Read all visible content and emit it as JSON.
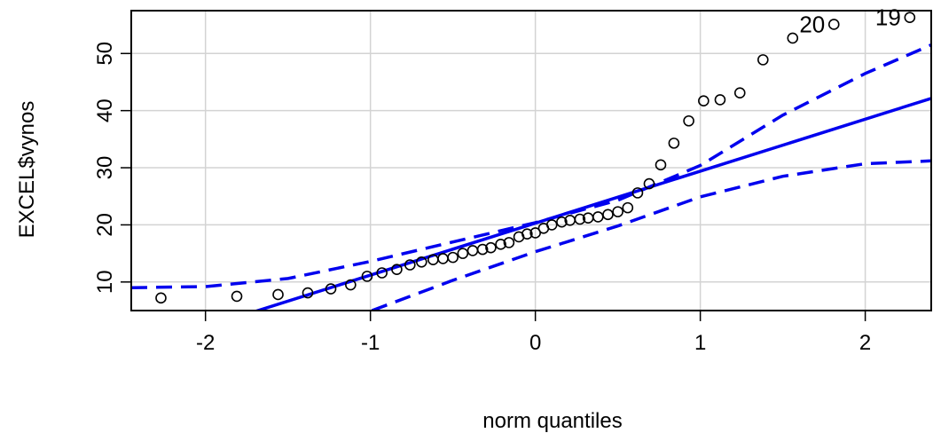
{
  "chart_data": {
    "type": "scatter",
    "title": "",
    "xlabel": "norm quantiles",
    "ylabel": "EXCEL$vynos",
    "xlim": [
      -2.45,
      2.4
    ],
    "ylim": [
      5,
      57.5
    ],
    "x_ticks": [
      -2,
      -1,
      0,
      1,
      2
    ],
    "y_ticks": [
      10,
      20,
      30,
      40,
      50
    ],
    "x_tick_labels": [
      "-2",
      "-1",
      "0",
      "1",
      "2"
    ],
    "y_tick_labels": [
      "10",
      "20",
      "30",
      "40",
      "50"
    ],
    "grid": true,
    "colors": {
      "line": "#0000ee",
      "points": "#000000",
      "grid": "#d3d3d3"
    },
    "points": [
      {
        "x": -2.27,
        "y": 7.2
      },
      {
        "x": -1.81,
        "y": 7.5
      },
      {
        "x": -1.56,
        "y": 7.8
      },
      {
        "x": -1.38,
        "y": 8.1
      },
      {
        "x": -1.24,
        "y": 8.8
      },
      {
        "x": -1.12,
        "y": 9.5
      },
      {
        "x": -1.02,
        "y": 11.0
      },
      {
        "x": -0.93,
        "y": 11.6
      },
      {
        "x": -0.84,
        "y": 12.2
      },
      {
        "x": -0.76,
        "y": 13.0
      },
      {
        "x": -0.69,
        "y": 13.5
      },
      {
        "x": -0.62,
        "y": 13.9
      },
      {
        "x": -0.56,
        "y": 14.1
      },
      {
        "x": -0.5,
        "y": 14.3
      },
      {
        "x": -0.44,
        "y": 15.0
      },
      {
        "x": -0.38,
        "y": 15.5
      },
      {
        "x": -0.32,
        "y": 15.7
      },
      {
        "x": -0.27,
        "y": 16.0
      },
      {
        "x": -0.21,
        "y": 16.6
      },
      {
        "x": -0.16,
        "y": 16.9
      },
      {
        "x": -0.1,
        "y": 17.9
      },
      {
        "x": -0.05,
        "y": 18.4
      },
      {
        "x": 0.0,
        "y": 18.6
      },
      {
        "x": 0.05,
        "y": 19.4
      },
      {
        "x": 0.1,
        "y": 20.0
      },
      {
        "x": 0.16,
        "y": 20.5
      },
      {
        "x": 0.21,
        "y": 20.8
      },
      {
        "x": 0.27,
        "y": 21.0
      },
      {
        "x": 0.32,
        "y": 21.2
      },
      {
        "x": 0.38,
        "y": 21.4
      },
      {
        "x": 0.44,
        "y": 21.8
      },
      {
        "x": 0.5,
        "y": 22.3
      },
      {
        "x": 0.56,
        "y": 23.0
      },
      {
        "x": 0.62,
        "y": 25.6
      },
      {
        "x": 0.69,
        "y": 27.2
      },
      {
        "x": 0.76,
        "y": 30.5
      },
      {
        "x": 0.84,
        "y": 34.3
      },
      {
        "x": 0.93,
        "y": 38.2
      },
      {
        "x": 1.02,
        "y": 41.7
      },
      {
        "x": 1.12,
        "y": 41.9
      },
      {
        "x": 1.24,
        "y": 43.1
      },
      {
        "x": 1.38,
        "y": 48.9
      },
      {
        "x": 1.56,
        "y": 52.7
      },
      {
        "x": 1.81,
        "y": 55.1
      },
      {
        "x": 2.27,
        "y": 56.3
      }
    ],
    "point_labels": [
      {
        "text": "20",
        "x": 1.81,
        "y": 55.1
      },
      {
        "text": "19",
        "x": 2.27,
        "y": 56.3
      }
    ],
    "reference_line": {
      "intercept": 20.3,
      "slope": 9.1
    },
    "confidence_band_upper": [
      {
        "x": -2.45,
        "y": 9.0
      },
      {
        "x": -2.0,
        "y": 9.2
      },
      {
        "x": -1.5,
        "y": 10.6
      },
      {
        "x": -1.0,
        "y": 13.6
      },
      {
        "x": -0.5,
        "y": 17.0
      },
      {
        "x": 0.0,
        "y": 20.4
      },
      {
        "x": 0.5,
        "y": 24.3
      },
      {
        "x": 1.0,
        "y": 30.4
      },
      {
        "x": 1.5,
        "y": 39.2
      },
      {
        "x": 2.0,
        "y": 46.5
      },
      {
        "x": 2.4,
        "y": 51.5
      }
    ],
    "confidence_band_lower": [
      {
        "x": -0.99,
        "y": 5.0
      },
      {
        "x": -0.5,
        "y": 10.3
      },
      {
        "x": 0.0,
        "y": 15.3
      },
      {
        "x": 0.5,
        "y": 19.8
      },
      {
        "x": 1.0,
        "y": 24.9
      },
      {
        "x": 1.5,
        "y": 28.5
      },
      {
        "x": 2.0,
        "y": 30.7
      },
      {
        "x": 2.4,
        "y": 31.2
      }
    ]
  }
}
